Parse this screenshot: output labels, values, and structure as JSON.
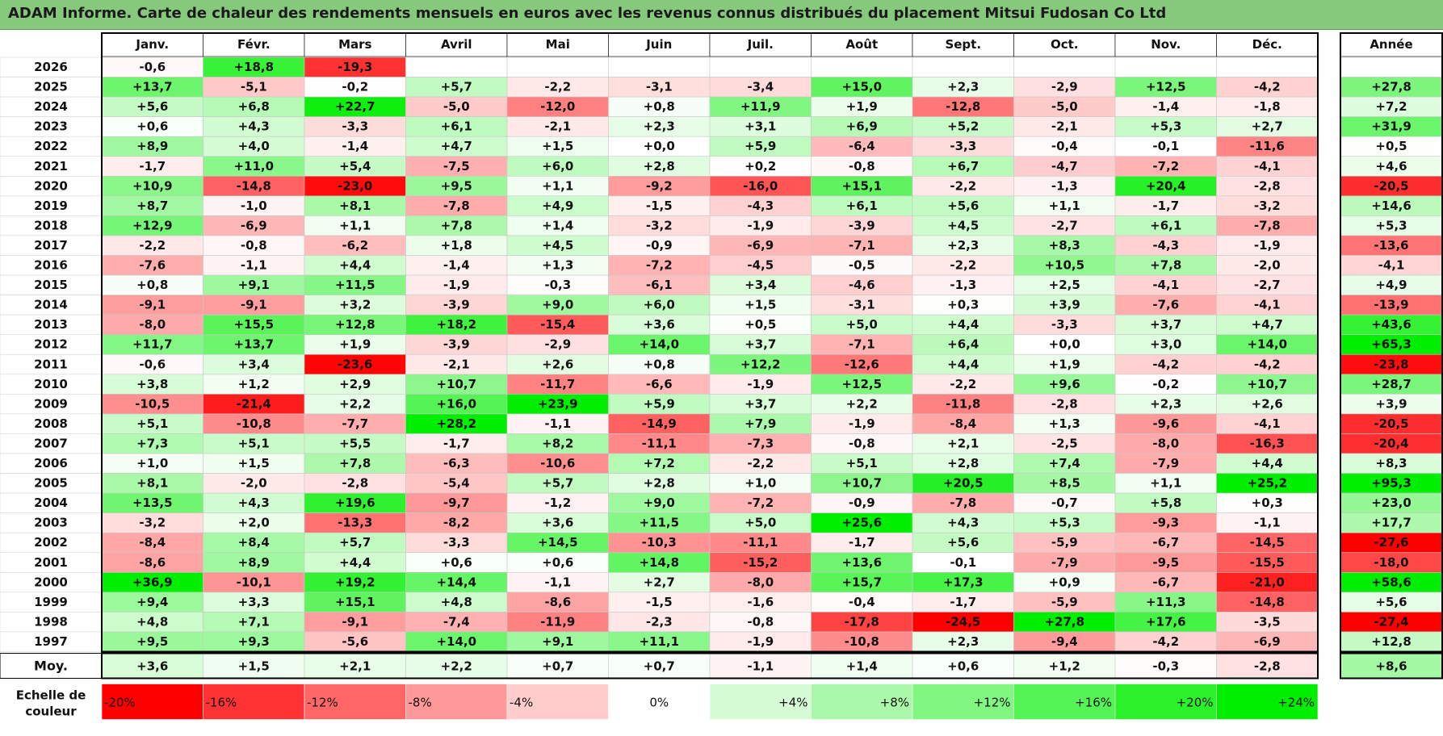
{
  "title": "ADAM Informe. Carte de chaleur des rendements mensuels en euros avec les revenus connus distribués du placement Mitsui Fudosan Co Ltd",
  "chart_data": {
    "type": "heatmap",
    "title": "ADAM Informe. Carte de chaleur des rendements mensuels en euros avec les revenus connus distribués du placement Mitsui Fudosan Co Ltd",
    "columns": [
      "Janv.",
      "Févr.",
      "Mars",
      "Avril",
      "Mai",
      "Juin",
      "Juil.",
      "Août",
      "Sept.",
      "Oct.",
      "Nov.",
      "Déc."
    ],
    "year_column_label": "Année",
    "average_row_label": "Moy.",
    "rows": [
      {
        "year": "2026",
        "months": [
          "-0,6",
          "+18,8",
          "-19,3",
          "",
          "",
          "",
          "",
          "",
          "",
          "",
          "",
          ""
        ],
        "annual": ""
      },
      {
        "year": "2025",
        "months": [
          "+13,7",
          "-5,1",
          "-0,2",
          "+5,7",
          "-2,2",
          "-3,1",
          "-3,4",
          "+15,0",
          "+2,3",
          "-2,9",
          "+12,5",
          "-4,2"
        ],
        "annual": "+27,8"
      },
      {
        "year": "2024",
        "months": [
          "+5,6",
          "+6,8",
          "+22,7",
          "-5,0",
          "-12,0",
          "+0,8",
          "+11,9",
          "+1,9",
          "-12,8",
          "-5,0",
          "-1,4",
          "-1,8"
        ],
        "annual": "+7,2"
      },
      {
        "year": "2023",
        "months": [
          "+0,6",
          "+4,3",
          "-3,3",
          "+6,1",
          "-2,1",
          "+2,3",
          "+3,1",
          "+6,9",
          "+5,2",
          "-2,1",
          "+5,3",
          "+2,7"
        ],
        "annual": "+31,9"
      },
      {
        "year": "2022",
        "months": [
          "+8,9",
          "+4,0",
          "-1,4",
          "+4,7",
          "+1,5",
          "+0,0",
          "+5,9",
          "-6,4",
          "-3,3",
          "-0,4",
          "-0,1",
          "-11,6"
        ],
        "annual": "+0,5"
      },
      {
        "year": "2021",
        "months": [
          "-1,7",
          "+11,0",
          "+5,4",
          "-7,5",
          "+6,0",
          "+2,8",
          "+0,2",
          "-0,8",
          "+6,7",
          "-4,7",
          "-7,2",
          "-4,1"
        ],
        "annual": "+4,6"
      },
      {
        "year": "2020",
        "months": [
          "+10,9",
          "-14,8",
          "-23,0",
          "+9,5",
          "+1,1",
          "-9,2",
          "-16,0",
          "+15,1",
          "-2,2",
          "-1,3",
          "+20,4",
          "-2,8"
        ],
        "annual": "-20,5"
      },
      {
        "year": "2019",
        "months": [
          "+8,7",
          "-1,0",
          "+8,1",
          "-7,8",
          "+4,9",
          "-1,5",
          "-4,3",
          "+6,1",
          "+5,6",
          "+1,1",
          "-1,7",
          "-3,2"
        ],
        "annual": "+14,6"
      },
      {
        "year": "2018",
        "months": [
          "+12,9",
          "-6,9",
          "+1,1",
          "+7,8",
          "+1,4",
          "-3,2",
          "-1,9",
          "-3,9",
          "+4,5",
          "-2,7",
          "+6,1",
          "-7,8"
        ],
        "annual": "+5,3"
      },
      {
        "year": "2017",
        "months": [
          "-2,2",
          "-0,8",
          "-6,2",
          "+1,8",
          "+4,5",
          "-0,9",
          "-6,9",
          "-7,1",
          "+2,3",
          "+8,3",
          "-4,3",
          "-1,9"
        ],
        "annual": "-13,6"
      },
      {
        "year": "2016",
        "months": [
          "-7,6",
          "-1,1",
          "+4,4",
          "-1,4",
          "+1,3",
          "-7,2",
          "-4,5",
          "-0,5",
          "-2,2",
          "+10,5",
          "+7,8",
          "-2,0"
        ],
        "annual": "-4,1"
      },
      {
        "year": "2015",
        "months": [
          "+0,8",
          "+9,1",
          "+11,5",
          "-1,9",
          "-0,3",
          "-6,1",
          "+3,4",
          "-4,6",
          "-1,3",
          "+2,5",
          "-4,1",
          "-2,7"
        ],
        "annual": "+4,9"
      },
      {
        "year": "2014",
        "months": [
          "-9,1",
          "-9,1",
          "+3,2",
          "-3,9",
          "+9,0",
          "+6,0",
          "+1,5",
          "-3,1",
          "+0,3",
          "+3,9",
          "-7,6",
          "-4,1"
        ],
        "annual": "-13,9"
      },
      {
        "year": "2013",
        "months": [
          "-8,0",
          "+15,5",
          "+12,8",
          "+18,2",
          "-15,4",
          "+3,6",
          "+0,5",
          "+5,0",
          "+4,4",
          "-3,3",
          "+3,7",
          "+4,7"
        ],
        "annual": "+43,6"
      },
      {
        "year": "2012",
        "months": [
          "+11,7",
          "+13,7",
          "+1,9",
          "-3,9",
          "-2,9",
          "+14,0",
          "+3,7",
          "-7,1",
          "+6,4",
          "+0,0",
          "+3,0",
          "+14,0"
        ],
        "annual": "+65,3"
      },
      {
        "year": "2011",
        "months": [
          "-0,6",
          "+3,4",
          "-23,6",
          "-2,1",
          "+2,6",
          "+0,8",
          "+12,2",
          "-12,6",
          "+4,4",
          "+1,9",
          "-4,2",
          "-4,2"
        ],
        "annual": "-23,8"
      },
      {
        "year": "2010",
        "months": [
          "+3,8",
          "+1,2",
          "+2,9",
          "+10,7",
          "-11,7",
          "-6,6",
          "-1,9",
          "+12,5",
          "-2,2",
          "+9,6",
          "-0,2",
          "+10,7"
        ],
        "annual": "+28,7"
      },
      {
        "year": "2009",
        "months": [
          "-10,5",
          "-21,4",
          "+2,2",
          "+16,0",
          "+23,9",
          "+5,9",
          "+3,7",
          "+2,2",
          "-11,8",
          "-2,8",
          "+2,3",
          "+2,6"
        ],
        "annual": "+3,9"
      },
      {
        "year": "2008",
        "months": [
          "+5,1",
          "-10,8",
          "-7,7",
          "+28,2",
          "-1,1",
          "-14,9",
          "+7,9",
          "-1,9",
          "-8,4",
          "+1,3",
          "-9,6",
          "-4,1"
        ],
        "annual": "-20,5"
      },
      {
        "year": "2007",
        "months": [
          "+7,3",
          "+5,1",
          "+5,5",
          "-1,7",
          "+8,2",
          "-11,1",
          "-7,3",
          "-0,8",
          "+2,1",
          "-2,5",
          "-8,0",
          "-16,3"
        ],
        "annual": "-20,4"
      },
      {
        "year": "2006",
        "months": [
          "+1,0",
          "+1,5",
          "+7,8",
          "-6,3",
          "-10,6",
          "+7,2",
          "-2,2",
          "+5,1",
          "+2,8",
          "+7,4",
          "-7,9",
          "+4,4"
        ],
        "annual": "+8,3"
      },
      {
        "year": "2005",
        "months": [
          "+8,1",
          "-2,0",
          "-2,8",
          "-5,4",
          "+5,7",
          "+2,8",
          "+1,0",
          "+10,7",
          "+20,5",
          "+8,5",
          "+1,1",
          "+25,2"
        ],
        "annual": "+95,3"
      },
      {
        "year": "2004",
        "months": [
          "+13,5",
          "+4,3",
          "+19,6",
          "-9,7",
          "-1,2",
          "+9,0",
          "-7,2",
          "-0,9",
          "-7,8",
          "-0,7",
          "+5,8",
          "+0,3"
        ],
        "annual": "+23,0"
      },
      {
        "year": "2003",
        "months": [
          "-3,2",
          "+2,0",
          "-13,3",
          "-8,2",
          "+3,6",
          "+11,5",
          "+5,0",
          "+25,6",
          "+4,3",
          "+5,3",
          "-9,3",
          "-1,1"
        ],
        "annual": "+17,7"
      },
      {
        "year": "2002",
        "months": [
          "-8,4",
          "+8,4",
          "+5,7",
          "-3,3",
          "+14,5",
          "-10,3",
          "-11,1",
          "-1,7",
          "+5,6",
          "-5,9",
          "-6,7",
          "-14,5"
        ],
        "annual": "-27,6"
      },
      {
        "year": "2001",
        "months": [
          "-8,6",
          "+8,9",
          "+4,4",
          "+0,6",
          "+0,6",
          "+14,8",
          "-15,2",
          "+13,6",
          "-0,1",
          "-7,9",
          "-9,5",
          "-15,5"
        ],
        "annual": "-18,0"
      },
      {
        "year": "2000",
        "months": [
          "+36,9",
          "-10,1",
          "+19,2",
          "+14,4",
          "-1,1",
          "+2,7",
          "-8,0",
          "+15,7",
          "+17,3",
          "+0,9",
          "-6,7",
          "-21,0"
        ],
        "annual": "+58,6"
      },
      {
        "year": "1999",
        "months": [
          "+9,4",
          "+3,3",
          "+15,1",
          "+4,8",
          "-8,6",
          "-1,5",
          "-1,6",
          "-0,4",
          "-1,7",
          "-5,9",
          "+11,3",
          "-14,8"
        ],
        "annual": "+5,6"
      },
      {
        "year": "1998",
        "months": [
          "+4,8",
          "+7,1",
          "-9,1",
          "-7,4",
          "-11,9",
          "-2,3",
          "-0,8",
          "-17,8",
          "-24,5",
          "+27,8",
          "+17,6",
          "-3,5"
        ],
        "annual": "-27,4"
      },
      {
        "year": "1997",
        "months": [
          "+9,5",
          "+9,3",
          "-5,6",
          "+14,0",
          "+9,1",
          "+11,1",
          "-1,9",
          "-10,8",
          "+2,3",
          "-9,4",
          "-4,2",
          "-6,9"
        ],
        "annual": "+12,8"
      }
    ],
    "average": {
      "months": [
        "+3,6",
        "+1,5",
        "+2,1",
        "+2,2",
        "+0,7",
        "+0,7",
        "-1,1",
        "+1,4",
        "+0,6",
        "+1,2",
        "-0,3",
        "-2,8"
      ],
      "annual": "+8,6"
    },
    "scale": {
      "label": "Echelle de couleur",
      "entries": [
        "-20%",
        "-16%",
        "-12%",
        "-8%",
        "-4%",
        "0%",
        "+4%",
        "+8%",
        "+12%",
        "+16%",
        "+20%",
        "+24%"
      ]
    },
    "colors": {
      "negative_max": "#ff0000",
      "neutral": "#ffffff",
      "positive_max": "#00ee00",
      "title_bar": "#87c97c",
      "border": "#000000",
      "cell_border": "#d0d0d0"
    }
  }
}
